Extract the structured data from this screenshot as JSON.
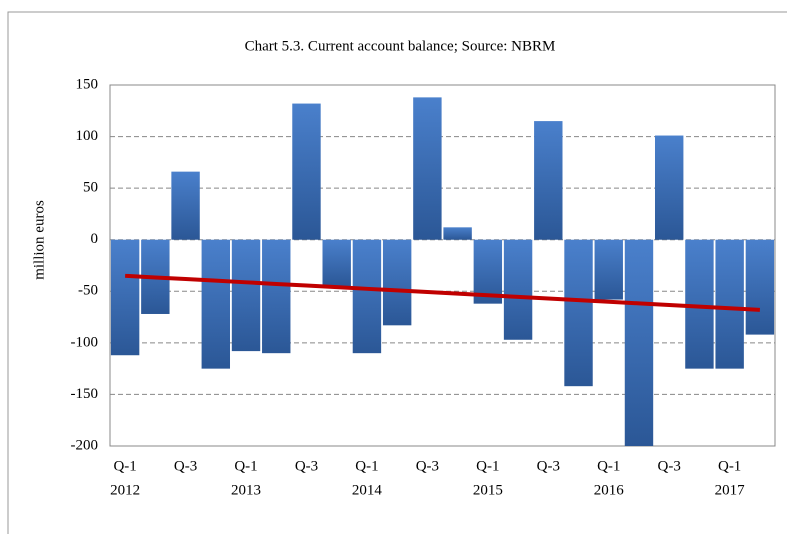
{
  "chart_data": {
    "type": "bar",
    "title": "Chart 5.3. Current account balance; Source: NBRM",
    "y_label": "million euros",
    "categories": [
      "Q-1",
      null,
      "Q-3",
      null,
      "Q-1",
      null,
      "Q-3",
      null,
      "Q-1",
      null,
      "Q-3",
      null,
      "Q-1",
      null,
      "Q-3",
      null,
      "Q-1",
      null,
      "Q-3",
      null,
      "Q-1",
      null
    ],
    "years": [
      "2012",
      null,
      null,
      null,
      "2013",
      null,
      null,
      null,
      "2014",
      null,
      null,
      null,
      "2015",
      null,
      null,
      null,
      "2016",
      null,
      null,
      null,
      "2017",
      null
    ],
    "series": [
      {
        "type": "bar",
        "color": "#3f6fb5",
        "values": [
          -112,
          -72,
          66,
          -125,
          -108,
          -110,
          132,
          -45,
          -110,
          -83,
          138,
          12,
          -62,
          -97,
          115,
          -142,
          -58,
          -200,
          101,
          -125,
          -125,
          -92
        ]
      },
      {
        "type": "line",
        "color": "#c00000",
        "values": [
          -35,
          -36.6,
          -38.1,
          -39.7,
          -41.3,
          -42.9,
          -44.4,
          -46,
          -47.6,
          -49.1,
          -50.7,
          -52.3,
          -53.9,
          -55.4,
          -57,
          -58.6,
          -60.1,
          -61.7,
          -63.3,
          -64.9,
          -66.4,
          -68
        ]
      }
    ],
    "ylim": [
      -200,
      150
    ],
    "yticks": [
      -200,
      -150,
      -100,
      -50,
      0,
      50,
      100,
      150
    ],
    "grid": true
  }
}
